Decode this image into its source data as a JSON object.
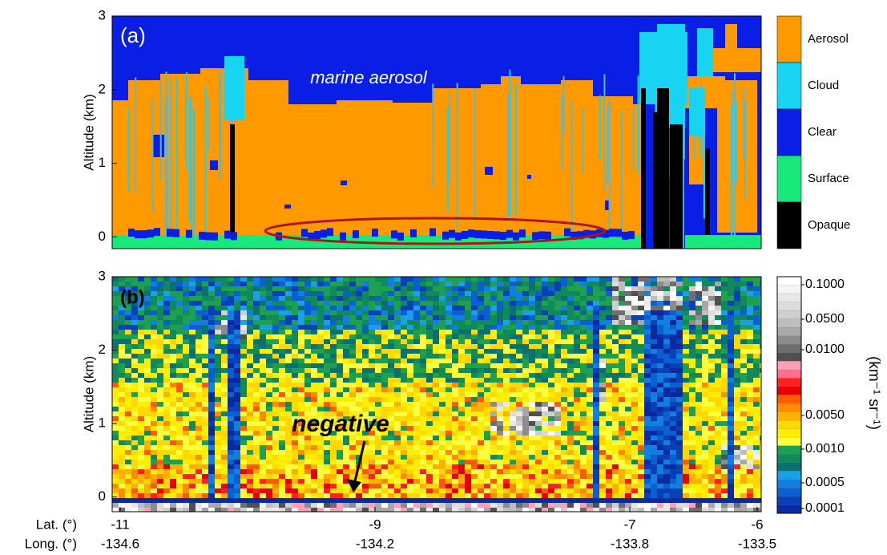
{
  "chart_data": [
    {
      "type": "classification",
      "label": "(a)",
      "annotation": "marine aerosol",
      "ylabel": "Altitude (km)",
      "ylim": [
        -0.16,
        3
      ],
      "yticks": [
        0,
        1,
        2,
        3
      ],
      "legend": [
        {
          "name": "Aerosol",
          "color": "#ff9900"
        },
        {
          "name": "Cloud",
          "color": "#19d3f3"
        },
        {
          "name": "Clear",
          "color": "#0a1fe6"
        },
        {
          "name": "Surface",
          "color": "#19e87a"
        },
        {
          "name": "Opaque",
          "color": "#000000"
        }
      ]
    },
    {
      "type": "heatmap",
      "label": "(b)",
      "annotation": "negative",
      "ylabel": "Altitude (km)",
      "ylim": [
        -0.2,
        3
      ],
      "yticks": [
        0,
        1,
        2,
        3
      ],
      "colorbar_label": "(km⁻¹ sr⁻¹)",
      "colorbar_ticks": [
        {
          "value": 0.1,
          "label": "0.1000"
        },
        {
          "value": 0.05,
          "label": "0.0500"
        },
        {
          "value": 0.01,
          "label": "0.0100"
        },
        {
          "value": 0.005,
          "label": "0.0050"
        },
        {
          "value": 0.001,
          "label": "0.0010"
        },
        {
          "value": 0.0005,
          "label": "0.0005"
        },
        {
          "value": 0.0001,
          "label": "0.0001"
        }
      ],
      "colorbar_colors": [
        "#ffffff",
        "#f4f4f4",
        "#e8e8e8",
        "#dcdcdc",
        "#cfcfcf",
        "#bdbdbd",
        "#a8a8a8",
        "#8c8c8c",
        "#6e6e6e",
        "#505050",
        "#ff9fb8",
        "#ff6f8f",
        "#ff2020",
        "#e60000",
        "#ff5a00",
        "#ff8c00",
        "#ffb000",
        "#ffd800",
        "#ffee00",
        "#ffff40",
        "#1fa050",
        "#108a5a",
        "#0a7070",
        "#1aa0e6",
        "#1080e0",
        "#0a60d0",
        "#0840b8",
        "#0a2aa0"
      ],
      "xlabel": "Lat. (°)",
      "xlim": [
        -11,
        -6
      ],
      "xticks": [
        -11,
        -9,
        -7,
        -6
      ],
      "x2label": "Long. (°)",
      "x2ticks": [
        -134.6,
        -134.2,
        -133.8,
        -133.5
      ]
    }
  ]
}
